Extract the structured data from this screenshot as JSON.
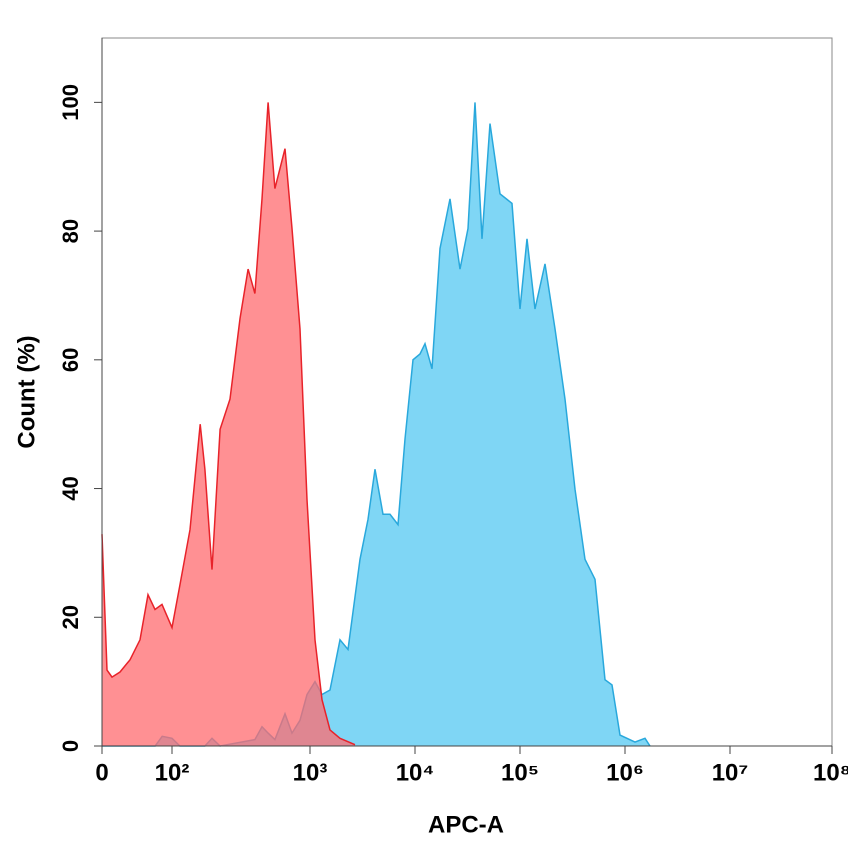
{
  "chart_data": {
    "type": "histogram-overlay",
    "xlabel": "APC-A",
    "ylabel": "Count  (%)",
    "xlim": [
      0,
      100000000
    ],
    "ylim": [
      0,
      110
    ],
    "xticks": [
      {
        "value": 0,
        "label": "0"
      },
      {
        "value": 100,
        "label": "10²"
      },
      {
        "value": 1000,
        "label": "10³"
      },
      {
        "value": 10000,
        "label": "10⁴"
      },
      {
        "value": 100000,
        "label": "10⁵"
      },
      {
        "value": 1000000,
        "label": "10⁶"
      },
      {
        "value": 10000000,
        "label": "10⁷"
      },
      {
        "value": 100000000,
        "label": "10⁸"
      }
    ],
    "yticks": [
      0,
      20,
      40,
      60,
      80,
      100
    ],
    "series": [
      {
        "color": "#29a8dc",
        "fill": "#7fd6f5",
        "x": [
          0,
          76,
          86,
          100,
          114,
          173,
          195,
          223,
          399,
          449,
          497,
          557,
          659,
          741,
          847,
          951,
          1116,
          1301,
          1550,
          1931,
          2301,
          2993,
          3566,
          4159,
          4955,
          5781,
          6888,
          8035,
          9571,
          11160,
          12450,
          14520,
          17300,
          21540,
          26830,
          31990,
          37250,
          43450,
          51790,
          64550,
          83970,
          100000,
          116600,
          138900,
          173000,
          215400,
          268300,
          334300,
          416000,
          517900,
          645500,
          751600,
          896000,
          1245000,
          1550000,
          1731000
        ],
        "values": [
          0,
          0,
          1.5,
          1.2,
          0,
          0,
          1.2,
          0,
          1,
          3,
          2,
          1,
          5,
          2,
          4,
          8,
          10,
          8,
          8.7,
          16.5,
          15,
          29,
          35.2,
          43,
          36,
          36,
          34.4,
          47.7,
          60,
          60.9,
          62.5,
          58.6,
          77.3,
          85,
          74.1,
          80.4,
          100,
          78.8,
          96.7,
          85.8,
          84.3,
          67.9,
          78.8,
          67.9,
          74.9,
          64.8,
          53.9,
          39.9,
          29,
          25.9,
          10.3,
          9.5,
          1.7,
          0.6,
          1.2,
          0
        ]
      },
      {
        "color": "#e8232a",
        "fill": "#ff6b6f",
        "x": [
          0,
          7.1,
          14.3,
          25.7,
          40,
          54.3,
          65.7,
          75.7,
          85.7,
          100,
          114,
          135,
          160,
          173,
          195,
          223,
          263,
          311,
          356,
          399,
          449,
          497,
          557,
          659,
          741,
          847,
          951,
          1116,
          1301,
          1550,
          1931,
          2683
        ],
        "values": [
          32.9,
          11.8,
          10.7,
          11.5,
          13.4,
          16.5,
          23.5,
          21.2,
          22,
          18.4,
          25,
          33.6,
          50,
          43,
          27.4,
          49.2,
          53.9,
          66.4,
          74.1,
          70.3,
          85,
          100,
          86.6,
          92.8,
          80.4,
          64.8,
          38.3,
          16.5,
          7.2,
          2.5,
          1.2,
          0.2
        ]
      }
    ]
  }
}
